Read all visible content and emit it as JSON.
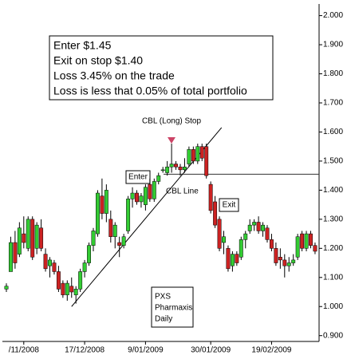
{
  "chart_data": {
    "type": "candlestick",
    "categories": [
      null,
      null,
      null,
      null,
      "/11/2008",
      null,
      null,
      null,
      null,
      null,
      null,
      null,
      null,
      null,
      null,
      null,
      null,
      null,
      "17/12/2008",
      null,
      null,
      null,
      null,
      null,
      null,
      null,
      null,
      null,
      null,
      null,
      null,
      null,
      "9/01/2009",
      null,
      null,
      null,
      null,
      null,
      null,
      null,
      null,
      null,
      null,
      null,
      null,
      null,
      null,
      "30/01/2009",
      null,
      null,
      null,
      null,
      null,
      null,
      null,
      null,
      null,
      null,
      null,
      null,
      null,
      "19/02/2009",
      null,
      null,
      null,
      null,
      null,
      null,
      null,
      null,
      null,
      null
    ],
    "ohlc": [
      [
        1.06,
        1.08,
        1.05,
        1.07
      ],
      [
        1.12,
        1.24,
        1.12,
        1.22
      ],
      [
        1.22,
        1.26,
        1.13,
        1.15
      ],
      [
        1.18,
        1.29,
        1.17,
        1.27
      ],
      [
        1.25,
        1.31,
        1.2,
        1.22
      ],
      [
        1.2,
        1.31,
        1.19,
        1.3
      ],
      [
        1.3,
        1.31,
        1.16,
        1.17
      ],
      [
        1.2,
        1.29,
        1.18,
        1.28
      ],
      [
        1.27,
        1.3,
        1.19,
        1.2
      ],
      [
        1.18,
        1.2,
        1.12,
        1.13
      ],
      [
        1.14,
        1.17,
        1.1,
        1.16
      ],
      [
        1.15,
        1.16,
        1.11,
        1.12
      ],
      [
        1.12,
        1.14,
        1.05,
        1.06
      ],
      [
        1.08,
        1.09,
        1.03,
        1.04
      ],
      [
        1.04,
        1.09,
        1.02,
        1.08
      ],
      [
        1.07,
        1.1,
        1.03,
        1.05
      ],
      [
        1.04,
        1.07,
        1.01,
        1.06
      ],
      [
        1.06,
        1.13,
        1.05,
        1.12
      ],
      [
        1.12,
        1.16,
        1.1,
        1.15
      ],
      [
        1.15,
        1.22,
        1.14,
        1.21
      ],
      [
        1.21,
        1.27,
        1.19,
        1.26
      ],
      [
        1.25,
        1.4,
        1.24,
        1.39
      ],
      [
        1.38,
        1.44,
        1.3,
        1.32
      ],
      [
        1.32,
        1.42,
        1.29,
        1.4
      ],
      [
        1.3,
        1.33,
        1.22,
        1.24
      ],
      [
        1.24,
        1.29,
        1.2,
        1.28
      ],
      [
        1.22,
        1.24,
        1.17,
        1.21
      ],
      [
        1.21,
        1.25,
        1.2,
        1.24
      ],
      [
        1.26,
        1.38,
        1.25,
        1.37
      ],
      [
        1.37,
        1.41,
        1.34,
        1.39
      ],
      [
        1.39,
        1.4,
        1.35,
        1.36
      ],
      [
        1.36,
        1.39,
        1.34,
        1.38
      ],
      [
        1.35,
        1.42,
        1.33,
        1.41
      ],
      [
        1.42,
        1.44,
        1.36,
        1.37
      ],
      [
        1.37,
        1.44,
        1.36,
        1.43
      ],
      [
        1.43,
        1.46,
        1.42,
        1.45
      ],
      [
        1.47,
        1.48,
        1.46,
        1.47
      ],
      [
        1.46,
        1.5,
        1.45,
        1.48
      ],
      [
        1.48,
        1.56,
        1.46,
        1.49
      ],
      [
        1.49,
        1.5,
        1.47,
        1.48
      ],
      [
        1.48,
        1.49,
        1.45,
        1.47
      ],
      [
        1.47,
        1.51,
        1.46,
        1.48
      ],
      [
        1.49,
        1.55,
        1.48,
        1.54
      ],
      [
        1.54,
        1.55,
        1.49,
        1.5
      ],
      [
        1.5,
        1.56,
        1.49,
        1.55
      ],
      [
        1.55,
        1.56,
        1.5,
        1.51
      ],
      [
        1.55,
        1.56,
        1.44,
        1.45
      ],
      [
        1.42,
        1.43,
        1.32,
        1.33
      ],
      [
        1.36,
        1.38,
        1.27,
        1.28
      ],
      [
        1.3,
        1.31,
        1.19,
        1.2
      ],
      [
        1.22,
        1.26,
        1.18,
        1.24
      ],
      [
        1.2,
        1.21,
        1.12,
        1.13
      ],
      [
        1.14,
        1.19,
        1.12,
        1.18
      ],
      [
        1.18,
        1.19,
        1.14,
        1.15
      ],
      [
        1.17,
        1.24,
        1.16,
        1.23
      ],
      [
        1.23,
        1.26,
        1.2,
        1.25
      ],
      [
        1.26,
        1.3,
        1.25,
        1.28
      ],
      [
        1.28,
        1.3,
        1.26,
        1.29
      ],
      [
        1.29,
        1.31,
        1.25,
        1.26
      ],
      [
        1.26,
        1.29,
        1.24,
        1.28
      ],
      [
        1.27,
        1.28,
        1.22,
        1.23
      ],
      [
        1.23,
        1.25,
        1.19,
        1.2
      ],
      [
        1.2,
        1.22,
        1.14,
        1.15
      ],
      [
        1.17,
        1.2,
        1.13,
        1.16
      ],
      [
        1.16,
        1.18,
        1.1,
        1.14
      ],
      [
        1.14,
        1.17,
        1.12,
        1.15
      ],
      [
        1.15,
        1.18,
        1.14,
        1.16
      ],
      [
        1.17,
        1.25,
        1.16,
        1.24
      ],
      [
        1.25,
        1.26,
        1.19,
        1.2
      ],
      [
        1.2,
        1.26,
        1.19,
        1.25
      ],
      [
        1.25,
        1.26,
        1.2,
        1.21
      ],
      [
        1.21,
        1.22,
        1.18,
        1.19
      ]
    ],
    "up_color": "#33cc33",
    "down_color": "#cc2222",
    "ylim": [
      0.88,
      2.04
    ],
    "yticks": [
      {
        "value": 0.9,
        "label": "0.900"
      },
      {
        "value": 1.0,
        "label": "1.000"
      },
      {
        "value": 1.1,
        "label": "1.100"
      },
      {
        "value": 1.2,
        "label": "1.200"
      },
      {
        "value": 1.3,
        "label": "1.300"
      },
      {
        "value": 1.4,
        "label": "1.400"
      },
      {
        "value": 1.5,
        "label": "1.500"
      },
      {
        "value": 1.6,
        "label": "1.600"
      },
      {
        "value": 1.7,
        "label": "1.700"
      },
      {
        "value": 1.8,
        "label": "1.800"
      },
      {
        "value": 1.9,
        "label": "1.900"
      },
      {
        "value": 2.0,
        "label": "2.000"
      }
    ],
    "trend_line": {
      "x": [
        15,
        49.5
      ],
      "y": [
        1.0,
        1.615
      ]
    },
    "reference_line": 1.455,
    "annotations": {
      "box_lines": [
        "Enter  $1.45",
        "Exit on stop  $1.40",
        "Loss 3.45% on the trade",
        "Loss is less that 0.05% of total portfolio"
      ],
      "stop_label": "CBL (Long) Stop",
      "enter_label": "Enter",
      "cbl_label": "CBL Line",
      "exit_label": "Exit",
      "info_lines": [
        "PXS",
        "Pharmaxis",
        "Daily"
      ]
    }
  }
}
